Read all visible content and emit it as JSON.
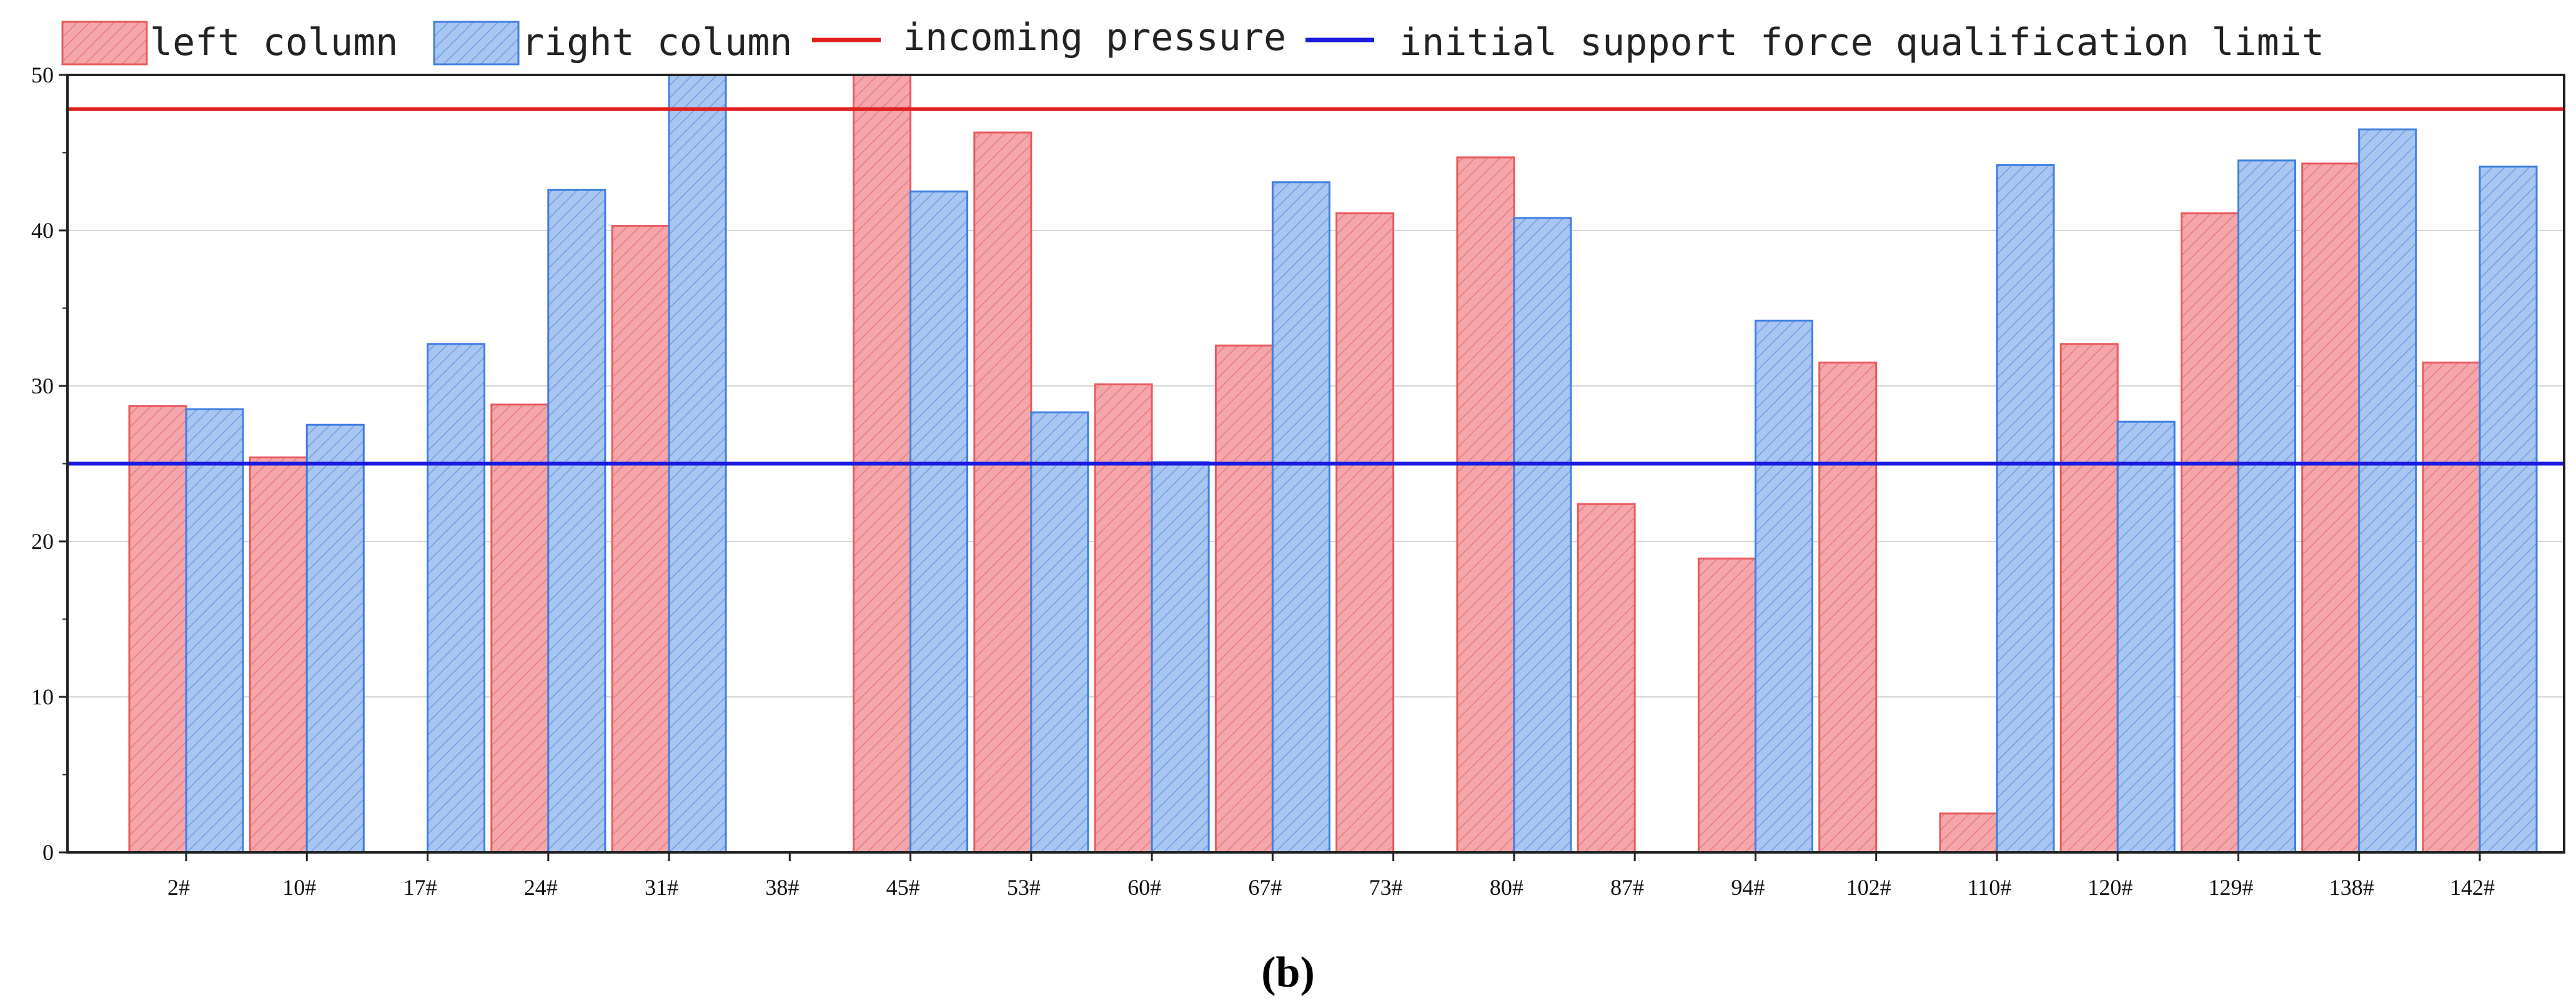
{
  "caption": "(b)",
  "chart_data": {
    "type": "bar",
    "title": "",
    "xlabel": "",
    "ylabel": "",
    "ylim": [
      0,
      50
    ],
    "yticks": [
      0,
      10,
      20,
      30,
      40,
      50
    ],
    "grid": true,
    "legend_position": "top",
    "categories": [
      "2#",
      "10#",
      "17#",
      "24#",
      "31#",
      "38#",
      "45#",
      "53#",
      "60#",
      "67#",
      "73#",
      "80#",
      "87#",
      "94#",
      "102#",
      "110#",
      "120#",
      "129#",
      "138#",
      "142#"
    ],
    "series": [
      {
        "name": "left column",
        "color": "#f4a6aa",
        "edge": "#e8595f",
        "values": [
          28.7,
          25.4,
          null,
          28.8,
          40.3,
          null,
          50.0,
          46.3,
          30.1,
          32.6,
          41.1,
          44.7,
          22.4,
          18.9,
          31.5,
          2.5,
          32.7,
          41.1,
          44.3,
          31.5
        ]
      },
      {
        "name": "right column",
        "color": "#a9c6f2",
        "edge": "#3f7fe0",
        "values": [
          28.5,
          27.5,
          32.7,
          42.6,
          50.0,
          null,
          42.5,
          28.3,
          25.1,
          43.1,
          null,
          40.8,
          null,
          34.2,
          null,
          44.2,
          27.7,
          44.5,
          46.5,
          44.1
        ]
      }
    ],
    "reference_lines": [
      {
        "name": "incoming pressure",
        "value": 47.8,
        "color": "#e02020"
      },
      {
        "name": "initial support force qualification limit",
        "value": 25.0,
        "color": "#1a1ae0"
      }
    ]
  }
}
